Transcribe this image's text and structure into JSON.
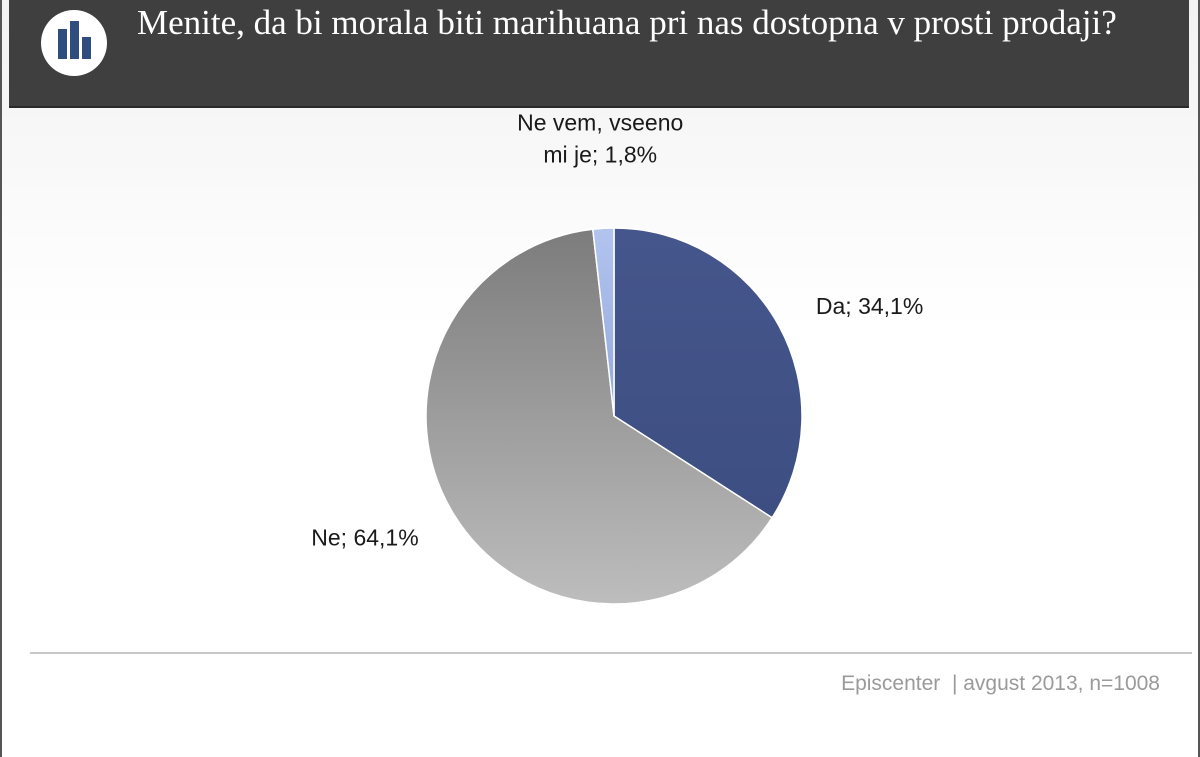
{
  "header": {
    "title": "Menite, da bi morala biti marihuana pri nas dostopna v prosti prodaji?",
    "logo_icon": "bar-chart-icon"
  },
  "chart_data": {
    "type": "pie",
    "title": "Menite, da bi morala biti marihuana pri nas dostopna v prosti prodaji?",
    "slices": [
      {
        "label": "Da",
        "value": 34.1,
        "display": "Da; 34,1%",
        "color": "#43548a"
      },
      {
        "label": "Ne",
        "value": 64.1,
        "display": "Ne; 64,1%",
        "color": "#9c9c9c"
      },
      {
        "label": "Ne vem, vseeno mi je",
        "value": 1.8,
        "display_lines": [
          "Ne vem, vseeno",
          "mi je; 1,8%"
        ],
        "color": "#a3b7e6"
      }
    ]
  },
  "footer": {
    "source": "Episcenter  | avgust 2013, n=1008"
  }
}
